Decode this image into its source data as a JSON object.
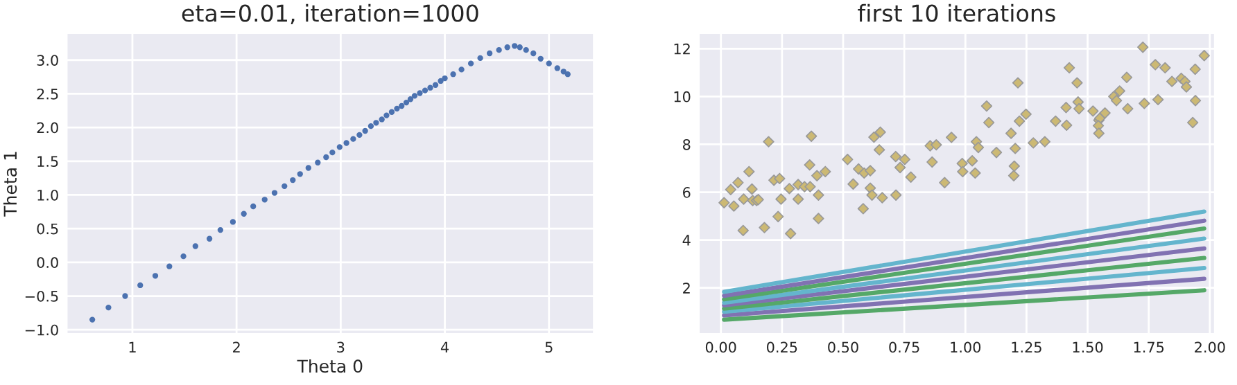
{
  "chart_data": [
    {
      "type": "scatter",
      "title": "eta=0.01, iteration=1000",
      "xlabel": "Theta 0",
      "ylabel": "Theta 1",
      "color": "#4c72b0",
      "marker": "circle",
      "grid": true,
      "x": [
        0.615,
        0.77,
        0.93,
        1.075,
        1.22,
        1.355,
        1.49,
        1.605,
        1.74,
        1.845,
        1.965,
        2.07,
        2.16,
        2.27,
        2.365,
        2.46,
        2.54,
        2.61,
        2.69,
        2.78,
        2.86,
        2.92,
        2.99,
        3.055,
        3.12,
        3.18,
        3.235,
        3.29,
        3.34,
        3.395,
        3.44,
        3.49,
        3.54,
        3.585,
        3.63,
        3.67,
        3.71,
        3.76,
        3.81,
        3.86,
        3.91,
        3.96,
        4.0,
        4.08,
        4.16,
        4.25,
        4.34,
        4.43,
        4.52,
        4.6,
        4.67,
        4.72,
        4.78,
        4.85,
        4.92,
        5.0,
        5.08,
        5.14,
        5.18
      ],
      "values": [
        -0.85,
        -0.67,
        -0.5,
        -0.34,
        -0.2,
        -0.06,
        0.09,
        0.24,
        0.35,
        0.48,
        0.6,
        0.72,
        0.83,
        0.93,
        1.03,
        1.13,
        1.22,
        1.31,
        1.4,
        1.48,
        1.56,
        1.63,
        1.71,
        1.77,
        1.83,
        1.89,
        1.95,
        2.02,
        2.07,
        2.12,
        2.18,
        2.23,
        2.28,
        2.32,
        2.37,
        2.42,
        2.47,
        2.51,
        2.55,
        2.59,
        2.63,
        2.69,
        2.73,
        2.79,
        2.86,
        2.95,
        3.03,
        3.1,
        3.15,
        3.19,
        3.21,
        3.19,
        3.15,
        3.1,
        3.02,
        2.95,
        2.88,
        2.83,
        2.79
      ],
      "xlim": [
        0.37,
        5.43
      ],
      "ylim": [
        -1.06,
        3.4
      ],
      "xticks": [
        1,
        2,
        3,
        4,
        5
      ],
      "yticks": [
        {
          "value": -1.0,
          "label": "−1.0"
        },
        {
          "value": -0.5,
          "label": "−0.5"
        },
        {
          "value": 0.0,
          "label": "0.0"
        },
        {
          "value": 0.5,
          "label": "0.5"
        },
        {
          "value": 1.0,
          "label": "1.0"
        },
        {
          "value": 1.5,
          "label": "1.5"
        },
        {
          "value": 2.0,
          "label": "2.0"
        },
        {
          "value": 2.5,
          "label": "2.5"
        },
        {
          "value": 3.0,
          "label": "3.0"
        }
      ]
    },
    {
      "type": "scatter",
      "title": "first 10 iterations",
      "grid": true,
      "xlim": [
        -0.09,
        2.02
      ],
      "ylim": [
        0.08,
        12.65
      ],
      "xticks": [
        {
          "value": 0,
          "label": "0.00"
        },
        {
          "value": 0.25,
          "label": "0.25"
        },
        {
          "value": 0.5,
          "label": "0.50"
        },
        {
          "value": 0.75,
          "label": "0.75"
        },
        {
          "value": 1.0,
          "label": "1.00"
        },
        {
          "value": 1.25,
          "label": "1.25"
        },
        {
          "value": 1.5,
          "label": "1.50"
        },
        {
          "value": 1.75,
          "label": "1.75"
        },
        {
          "value": 2.0,
          "label": "2.00"
        }
      ],
      "yticks": [
        2,
        4,
        6,
        8,
        10,
        12
      ],
      "series": [
        {
          "type": "scatter",
          "marker": "diamond",
          "color": "#ccb974",
          "x": [
            0.04,
            0.07,
            0.115,
            0.127,
            0.195,
            0.217,
            0.24,
            0.28,
            0.316,
            0.342,
            0.365,
            0.37,
            0.363,
            0.393,
            0.427,
            0.518,
            0.541,
            0.563,
            0.586,
            0.611,
            0.626,
            0.652,
            0.648,
            0.611,
            0.715,
            0.733,
            0.752,
            0.777,
            0.856,
            0.881,
            0.864,
            0.915,
            0.943,
            0.987,
            0.989,
            1.028,
            1.04,
            1.045,
            1.053,
            1.087,
            1.096,
            1.127,
            1.187,
            1.2,
            1.198,
            1.204,
            1.215,
            1.221,
            1.248,
            1.278,
            1.325,
            1.369,
            1.412,
            1.414,
            1.425,
            1.457,
            1.461,
            1.465,
            1.522,
            1.546,
            1.55,
            1.544,
            1.546,
            1.571,
            1.607,
            1.618,
            1.631,
            1.66,
            1.664,
            1.726,
            1.732,
            1.777,
            1.788,
            1.817,
            1.845,
            1.883,
            1.898,
            1.904,
            1.93,
            1.94,
            1.941,
            1.977,
            0.013,
            0.053,
            0.093,
            0.091,
            0.13,
            0.146,
            0.153,
            0.178,
            0.234,
            0.246,
            0.285,
            0.316,
            0.399,
            0.399,
            0.582,
            0.618,
            0.66,
            0.716
          ],
          "values": [
            6.11,
            6.4,
            6.86,
            6.13,
            8.11,
            6.5,
            6.57,
            6.15,
            6.32,
            6.23,
            6.23,
            8.34,
            7.14,
            6.69,
            6.86,
            7.37,
            6.34,
            6.97,
            6.8,
            6.9,
            8.3,
            8.51,
            7.77,
            6.17,
            7.49,
            7.03,
            7.37,
            6.63,
            7.94,
            7.98,
            7.26,
            6.4,
            8.29,
            7.2,
            6.86,
            7.31,
            6.8,
            8.11,
            7.87,
            9.6,
            8.91,
            7.66,
            8.46,
            7.09,
            6.69,
            7.83,
            10.57,
            8.97,
            9.26,
            8.06,
            8.11,
            8.97,
            9.54,
            8.8,
            11.2,
            10.57,
            9.77,
            9.49,
            9.39,
            9.01,
            9.09,
            8.78,
            8.46,
            9.31,
            10.0,
            9.83,
            10.23,
            10.8,
            9.49,
            12.06,
            9.71,
            11.33,
            9.87,
            11.2,
            10.63,
            10.76,
            10.63,
            10.4,
            8.91,
            11.14,
            9.83,
            11.71,
            5.56,
            5.42,
            5.71,
            4.4,
            5.65,
            5.65,
            5.69,
            4.52,
            4.98,
            5.71,
            4.27,
            5.71,
            5.88,
            4.9,
            5.31,
            5.88,
            5.77,
            5.88
          ]
        },
        {
          "type": "line",
          "color": "#55a868",
          "x": [
            0.013,
            1.977
          ],
          "values": [
            0.67,
            1.9
          ]
        },
        {
          "type": "line",
          "color": "#8172b2",
          "x": [
            0.013,
            1.977
          ],
          "values": [
            0.85,
            2.38
          ]
        },
        {
          "type": "line",
          "color": "#64b5cd",
          "x": [
            0.013,
            1.977
          ],
          "values": [
            1.0,
            2.83
          ]
        },
        {
          "type": "line",
          "color": "#55a868",
          "x": [
            0.013,
            1.977
          ],
          "values": [
            1.13,
            3.25
          ]
        },
        {
          "type": "line",
          "color": "#8172b2",
          "x": [
            0.013,
            1.977
          ],
          "values": [
            1.27,
            3.65
          ]
        },
        {
          "type": "line",
          "color": "#64b5cd",
          "x": [
            0.013,
            1.977
          ],
          "values": [
            1.38,
            4.06
          ]
        },
        {
          "type": "line",
          "color": "#55a868",
          "x": [
            0.013,
            1.977
          ],
          "values": [
            1.52,
            4.48
          ]
        },
        {
          "type": "line",
          "color": "#8172b2",
          "x": [
            0.013,
            1.977
          ],
          "values": [
            1.67,
            4.81
          ]
        },
        {
          "type": "line",
          "color": "#64b5cd",
          "x": [
            0.013,
            1.977
          ],
          "values": [
            1.83,
            5.19
          ]
        }
      ]
    }
  ]
}
